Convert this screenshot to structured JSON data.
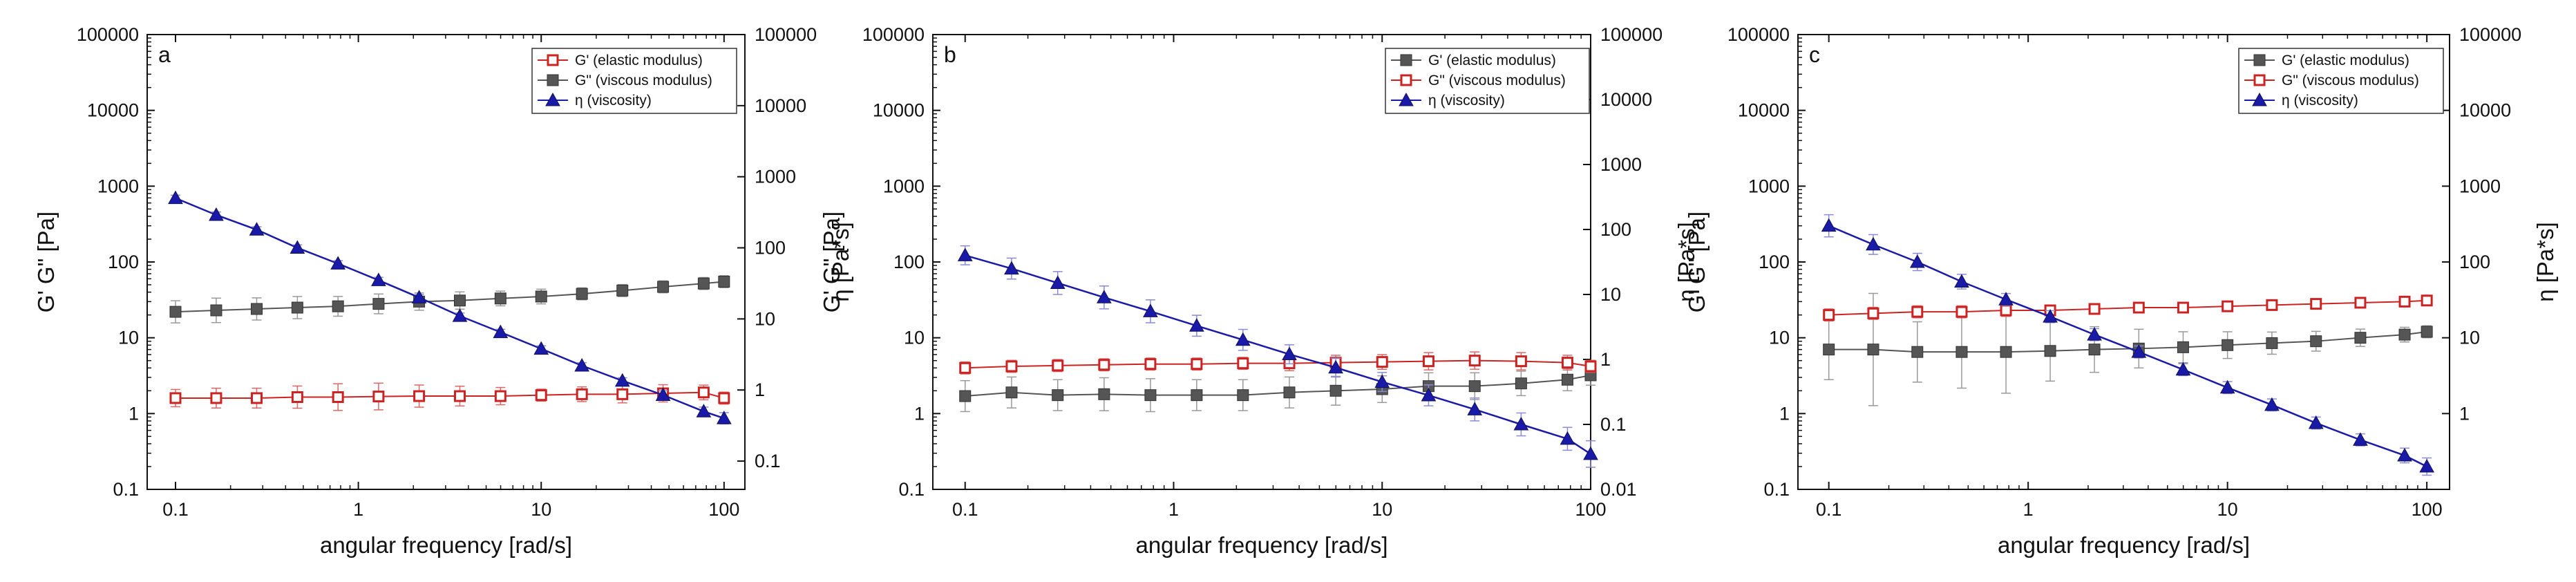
{
  "chart_data": [
    {
      "type": "line",
      "panel": "a",
      "xlabel": "angular frequency [rad/s]",
      "ylabel": "G' G\" [Pa]",
      "y2label": "η [Pa*s]",
      "xscale": "log",
      "yscale": "log",
      "xlim": [
        0.07,
        130
      ],
      "ylim": [
        0.1,
        100000
      ],
      "y2lim": [
        0.04,
        100000
      ],
      "xticks": [
        "0.1",
        "1",
        "10",
        "100"
      ],
      "yticks": [
        "0.1",
        "1",
        "10",
        "100",
        "1000",
        "10000",
        "100000"
      ],
      "y2ticks": [
        "0.1",
        "1",
        "10",
        "100",
        "1000",
        "10000",
        "100000"
      ],
      "x": [
        0.1,
        0.167,
        0.278,
        0.464,
        0.774,
        1.29,
        2.15,
        3.59,
        5.99,
        10,
        16.7,
        27.8,
        46.4,
        77.4,
        100
      ],
      "series": [
        {
          "name": "G' (elastic modulus)",
          "axis": "left",
          "color": "#cc2222",
          "marker": "square-open",
          "x": [
            0.1,
            0.167,
            0.278,
            0.464,
            0.774,
            1.29,
            2.15,
            3.59,
            5.99,
            10,
            16.7,
            27.8,
            46.4,
            77.4,
            100
          ],
          "values": [
            1.6,
            1.6,
            1.6,
            1.65,
            1.65,
            1.68,
            1.7,
            1.7,
            1.7,
            1.75,
            1.8,
            1.8,
            1.85,
            1.9,
            1.6
          ],
          "err": [
            1.3,
            1.35,
            1.35,
            1.4,
            1.5,
            1.5,
            1.4,
            1.35,
            1.3,
            1.2,
            1.25,
            1.3,
            1.3,
            1.25,
            1.2
          ]
        },
        {
          "name": "G\" (viscous modulus)",
          "axis": "left",
          "color": "#555555",
          "marker": "square-filled",
          "x": [
            0.1,
            0.167,
            0.278,
            0.464,
            0.774,
            1.29,
            2.15,
            3.59,
            5.99,
            10,
            16.7,
            27.8,
            46.4,
            77.4,
            100
          ],
          "values": [
            22,
            23,
            24,
            25,
            26,
            28,
            30,
            31,
            33,
            35,
            38,
            42,
            47,
            52,
            55
          ],
          "err": [
            1.4,
            1.45,
            1.4,
            1.4,
            1.35,
            1.35,
            1.3,
            1.3,
            1.25,
            1.25,
            1.2,
            1.2,
            1.2,
            1.2,
            1.2
          ]
        },
        {
          "name": "η  (viscosity)",
          "axis": "right",
          "color": "#1a1aa8",
          "marker": "triangle-filled",
          "x": [
            0.1,
            0.167,
            0.278,
            0.464,
            0.774,
            1.29,
            2.15,
            3.59,
            5.99,
            10,
            16.7,
            27.8,
            46.4,
            77.4,
            100
          ],
          "values": [
            500,
            290,
            180,
            100,
            60,
            35,
            20,
            11,
            6.5,
            3.8,
            2.2,
            1.35,
            0.85,
            0.5,
            0.4
          ],
          "err": [
            1.1,
            1.1,
            1.1,
            1.1,
            1.1,
            1.1,
            1.1,
            1.1,
            1.1,
            1.1,
            1.1,
            1.1,
            1.15,
            1.15,
            1.2
          ]
        }
      ],
      "legend": "top-right"
    },
    {
      "type": "line",
      "panel": "b",
      "xlabel": "angular frequency [rad/s]",
      "ylabel": "G' G\" [Pa]",
      "y2label": "η [Pa*s]",
      "xscale": "log",
      "yscale": "log",
      "xlim": [
        0.07,
        100
      ],
      "ylim": [
        0.1,
        100000
      ],
      "y2lim": [
        0.01,
        100000
      ],
      "xticks": [
        "0.1",
        "1",
        "10",
        "100"
      ],
      "yticks": [
        "0.1",
        "1",
        "10",
        "100",
        "1000",
        "10000",
        "100000"
      ],
      "y2ticks": [
        "0.01",
        "0.1",
        "1",
        "10",
        "100",
        "1000",
        "10000",
        "100000"
      ],
      "series": [
        {
          "name": "G' (elastic modulus)",
          "axis": "left",
          "color": "#555555",
          "marker": "square-filled",
          "x": [
            0.1,
            0.167,
            0.278,
            0.464,
            0.774,
            1.29,
            2.15,
            3.59,
            5.99,
            10,
            16.7,
            27.8,
            46.4,
            77.4,
            100
          ],
          "values": [
            1.7,
            1.9,
            1.75,
            1.8,
            1.75,
            1.75,
            1.75,
            1.9,
            2.0,
            2.1,
            2.3,
            2.3,
            2.5,
            2.8,
            3.2
          ],
          "err": [
            1.6,
            1.6,
            1.6,
            1.65,
            1.65,
            1.6,
            1.6,
            1.6,
            1.55,
            1.5,
            1.5,
            1.5,
            1.45,
            1.4,
            1.35
          ]
        },
        {
          "name": "G\" (viscous modulus)",
          "axis": "left",
          "color": "#cc2222",
          "marker": "square-open",
          "x": [
            0.1,
            0.167,
            0.278,
            0.464,
            0.774,
            1.29,
            2.15,
            3.59,
            5.99,
            10,
            16.7,
            27.8,
            46.4,
            77.4,
            100
          ],
          "values": [
            4.0,
            4.2,
            4.3,
            4.4,
            4.5,
            4.5,
            4.6,
            4.6,
            4.7,
            4.8,
            4.9,
            5.0,
            4.9,
            4.7,
            4.2
          ],
          "err": [
            1.2,
            1.2,
            1.2,
            1.2,
            1.2,
            1.2,
            1.2,
            1.25,
            1.25,
            1.25,
            1.3,
            1.3,
            1.3,
            1.25,
            1.2
          ]
        },
        {
          "name": "η   (viscosity)",
          "axis": "right",
          "color": "#1a1aa8",
          "marker": "triangle-filled",
          "x": [
            0.1,
            0.167,
            0.278,
            0.464,
            0.774,
            1.29,
            2.15,
            3.59,
            5.99,
            10,
            16.7,
            27.8,
            46.4,
            77.4,
            100
          ],
          "values": [
            40,
            25,
            15,
            9,
            5.5,
            3.3,
            2.0,
            1.2,
            0.75,
            0.45,
            0.28,
            0.17,
            0.1,
            0.06,
            0.035
          ],
          "err": [
            1.4,
            1.45,
            1.5,
            1.5,
            1.5,
            1.45,
            1.45,
            1.4,
            1.4,
            1.4,
            1.45,
            1.5,
            1.5,
            1.5,
            1.6
          ]
        }
      ],
      "legend": "top-right"
    },
    {
      "type": "line",
      "panel": "c",
      "xlabel": "angular frequency [rad/s]",
      "ylabel": "G' G\" [Pa]",
      "y2label": "η [Pa*s]",
      "xscale": "log",
      "yscale": "log",
      "xlim": [
        0.07,
        130
      ],
      "ylim": [
        0.1,
        100000
      ],
      "y2lim": [
        0.1,
        100000
      ],
      "xticks": [
        "0.1",
        "1",
        "10",
        "100"
      ],
      "yticks": [
        "0.1",
        "1",
        "10",
        "100",
        "1000",
        "10000",
        "100000"
      ],
      "y2ticks": [
        "1",
        "10",
        "100",
        "1000",
        "10000",
        "100000"
      ],
      "series": [
        {
          "name": "G' (elastic modulus)",
          "axis": "left",
          "color": "#555555",
          "marker": "square-filled",
          "x": [
            0.1,
            0.167,
            0.278,
            0.464,
            0.774,
            1.29,
            2.15,
            3.59,
            5.99,
            10,
            16.7,
            27.8,
            46.4,
            77.4,
            100
          ],
          "values": [
            7.0,
            7.0,
            6.5,
            6.5,
            6.5,
            6.7,
            7.0,
            7.2,
            7.5,
            8.0,
            8.5,
            9.0,
            10,
            11,
            12
          ],
          "err": [
            2.5,
            5.5,
            2.5,
            3.0,
            3.5,
            2.5,
            2.0,
            1.8,
            1.6,
            1.5,
            1.4,
            1.35,
            1.3,
            1.25,
            1.2
          ]
        },
        {
          "name": "G\" (viscous modulus)",
          "axis": "left",
          "color": "#cc2222",
          "marker": "square-open",
          "x": [
            0.1,
            0.167,
            0.278,
            0.464,
            0.774,
            1.29,
            2.15,
            3.59,
            5.99,
            10,
            16.7,
            27.8,
            46.4,
            77.4,
            100
          ],
          "values": [
            20,
            21,
            22,
            22,
            23,
            23,
            24,
            25,
            25,
            26,
            27,
            28,
            29,
            30,
            31
          ],
          "err": [
            1.2,
            1.2,
            1.2,
            1.2,
            1.2,
            1.15,
            1.15,
            1.15,
            1.15,
            1.15,
            1.15,
            1.15,
            1.15,
            1.15,
            1.15
          ]
        },
        {
          "name": "η   (viscosity)",
          "axis": "right",
          "color": "#1a1aa8",
          "marker": "triangle-filled",
          "x": [
            0.1,
            0.167,
            0.278,
            0.464,
            0.774,
            1.29,
            2.15,
            3.59,
            5.99,
            10,
            16.7,
            27.8,
            46.4,
            77.4,
            100
          ],
          "values": [
            300,
            170,
            100,
            55,
            32,
            19,
            11,
            6.5,
            3.8,
            2.2,
            1.3,
            0.75,
            0.45,
            0.28,
            0.2
          ],
          "err": [
            1.4,
            1.35,
            1.3,
            1.25,
            1.2,
            1.2,
            1.2,
            1.2,
            1.2,
            1.2,
            1.2,
            1.2,
            1.2,
            1.25,
            1.3
          ]
        }
      ],
      "legend": "top-right"
    }
  ]
}
